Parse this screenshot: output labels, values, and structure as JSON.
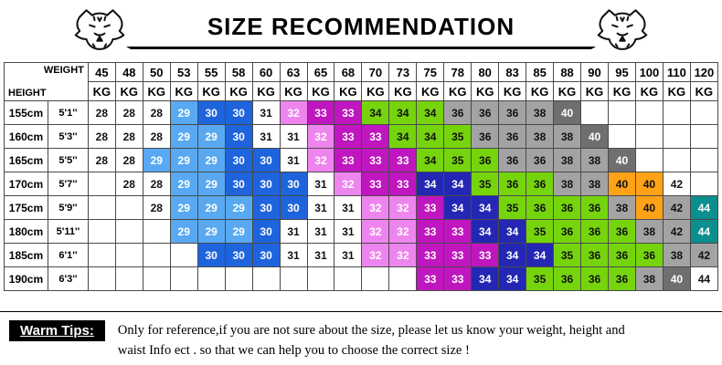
{
  "chart_data": {
    "type": "table",
    "title": "SIZE RECOMMENDATION",
    "corner_labels": {
      "top_right": "WEIGHT",
      "bottom_left": "HEIGHT"
    },
    "unit": "KG",
    "weights_kg": [
      "45",
      "48",
      "50",
      "53",
      "55",
      "58",
      "60",
      "63",
      "65",
      "68",
      "70",
      "73",
      "75",
      "78",
      "80",
      "83",
      "85",
      "88",
      "90",
      "95",
      "100",
      "110",
      "120"
    ],
    "rows": [
      {
        "height_cm": "155cm",
        "height_ft": "5'1''",
        "sizes": [
          "28",
          "28",
          "28",
          "29",
          "30",
          "30",
          "31",
          "32",
          "33",
          "33",
          "34",
          "34",
          "34",
          "36",
          "36",
          "36",
          "38",
          "40",
          "",
          "",
          "",
          "",
          ""
        ],
        "colors": [
          "white",
          "white",
          "white",
          "ltblue",
          "blue",
          "blue",
          "white",
          "violet",
          "magenta",
          "magenta",
          "green",
          "green",
          "green",
          "gray",
          "gray",
          "gray",
          "gray",
          "dkgray",
          "",
          "",
          "",
          "",
          ""
        ]
      },
      {
        "height_cm": "160cm",
        "height_ft": "5'3''",
        "sizes": [
          "28",
          "28",
          "28",
          "29",
          "29",
          "30",
          "31",
          "31",
          "32",
          "33",
          "33",
          "34",
          "34",
          "35",
          "36",
          "36",
          "38",
          "38",
          "40",
          "",
          "",
          "",
          ""
        ],
        "colors": [
          "white",
          "white",
          "white",
          "ltblue",
          "ltblue",
          "blue",
          "white",
          "white",
          "violet",
          "magenta",
          "magenta",
          "green",
          "green",
          "green",
          "gray",
          "gray",
          "gray",
          "gray",
          "dkgray",
          "",
          "",
          "",
          ""
        ]
      },
      {
        "height_cm": "165cm",
        "height_ft": "5'5''",
        "sizes": [
          "28",
          "28",
          "29",
          "29",
          "29",
          "30",
          "30",
          "31",
          "32",
          "33",
          "33",
          "33",
          "34",
          "35",
          "36",
          "36",
          "36",
          "38",
          "38",
          "40",
          "",
          "",
          ""
        ],
        "colors": [
          "white",
          "white",
          "ltblue",
          "ltblue",
          "ltblue",
          "blue",
          "blue",
          "white",
          "violet",
          "magenta",
          "magenta",
          "magenta",
          "green",
          "green",
          "green",
          "gray",
          "gray",
          "gray",
          "gray",
          "dkgray",
          "",
          "",
          ""
        ]
      },
      {
        "height_cm": "170cm",
        "height_ft": "5'7''",
        "sizes": [
          "",
          "28",
          "28",
          "29",
          "29",
          "30",
          "30",
          "30",
          "31",
          "32",
          "33",
          "33",
          "34",
          "34",
          "35",
          "36",
          "36",
          "38",
          "38",
          "40",
          "40",
          "42",
          ""
        ],
        "colors": [
          "",
          "white",
          "white",
          "ltblue",
          "ltblue",
          "blue",
          "blue",
          "blue",
          "white",
          "violet",
          "magenta",
          "magenta",
          "navy",
          "navy",
          "green",
          "green",
          "green",
          "gray",
          "gray",
          "orange",
          "orange",
          "white",
          ""
        ]
      },
      {
        "height_cm": "175cm",
        "height_ft": "5'9''",
        "sizes": [
          "",
          "",
          "28",
          "29",
          "29",
          "29",
          "30",
          "30",
          "31",
          "31",
          "32",
          "32",
          "33",
          "34",
          "34",
          "35",
          "36",
          "36",
          "36",
          "38",
          "40",
          "42",
          "44"
        ],
        "colors": [
          "",
          "",
          "white",
          "ltblue",
          "ltblue",
          "ltblue",
          "blue",
          "blue",
          "white",
          "white",
          "violet",
          "violet",
          "magenta",
          "navy",
          "navy",
          "green",
          "green",
          "green",
          "green",
          "gray",
          "orange",
          "gray",
          "teal"
        ]
      },
      {
        "height_cm": "180cm",
        "height_ft": "5'11''",
        "sizes": [
          "",
          "",
          "",
          "29",
          "29",
          "29",
          "30",
          "31",
          "31",
          "31",
          "32",
          "32",
          "33",
          "33",
          "34",
          "34",
          "35",
          "36",
          "36",
          "36",
          "38",
          "42",
          "44"
        ],
        "colors": [
          "",
          "",
          "",
          "ltblue",
          "ltblue",
          "ltblue",
          "blue",
          "white",
          "white",
          "white",
          "violet",
          "violet",
          "magenta",
          "magenta",
          "navy",
          "navy",
          "green",
          "green",
          "green",
          "green",
          "gray",
          "gray",
          "teal"
        ]
      },
      {
        "height_cm": "185cm",
        "height_ft": "6'1''",
        "sizes": [
          "",
          "",
          "",
          "",
          "30",
          "30",
          "30",
          "31",
          "31",
          "31",
          "32",
          "32",
          "33",
          "33",
          "33",
          "34",
          "34",
          "35",
          "36",
          "36",
          "36",
          "38",
          "42"
        ],
        "colors": [
          "",
          "",
          "",
          "",
          "blue",
          "blue",
          "blue",
          "white",
          "white",
          "white",
          "violet",
          "violet",
          "magenta",
          "magenta",
          "magenta",
          "navy",
          "navy",
          "green",
          "green",
          "green",
          "green",
          "gray",
          "gray"
        ]
      },
      {
        "height_cm": "190cm",
        "height_ft": "6'3''",
        "sizes": [
          "",
          "",
          "",
          "",
          "",
          "",
          "",
          "",
          "",
          "",
          "",
          "",
          "33",
          "33",
          "34",
          "34",
          "35",
          "36",
          "36",
          "36",
          "38",
          "40",
          "44"
        ],
        "colors": [
          "",
          "",
          "",
          "",
          "",
          "",
          "",
          "",
          "",
          "",
          "",
          "",
          "magenta",
          "magenta",
          "navy",
          "navy",
          "green",
          "green",
          "green",
          "green",
          "gray",
          "dkgray",
          "white"
        ]
      }
    ]
  },
  "tips": {
    "label": "Warm Tips:",
    "line1": "Only for reference,if you are not sure about the size, please let us know your weight, height and",
    "line2": "waist Info ect . so that we can help you to choose the correct size !"
  },
  "palette": {
    "white": {
      "bg": "#ffffff",
      "fg": "#111111"
    },
    "ltblue": {
      "bg": "#58a9f2",
      "fg": "#ffffff"
    },
    "blue": {
      "bg": "#1e64dc",
      "fg": "#ffffff"
    },
    "violet": {
      "bg": "#ee85ee",
      "fg": "#ffffff"
    },
    "magenta": {
      "bg": "#bf16bf",
      "fg": "#ffffff"
    },
    "navy": {
      "bg": "#2327b4",
      "fg": "#ffffff"
    },
    "green": {
      "bg": "#76d40c",
      "fg": "#111111"
    },
    "gray": {
      "bg": "#a3a3a3",
      "fg": "#111111"
    },
    "dkgray": {
      "bg": "#6f6f6f",
      "fg": "#ffffff"
    },
    "orange": {
      "bg": "#ffa217",
      "fg": "#111111"
    },
    "teal": {
      "bg": "#0b8e8e",
      "fg": "#ffffff"
    }
  }
}
